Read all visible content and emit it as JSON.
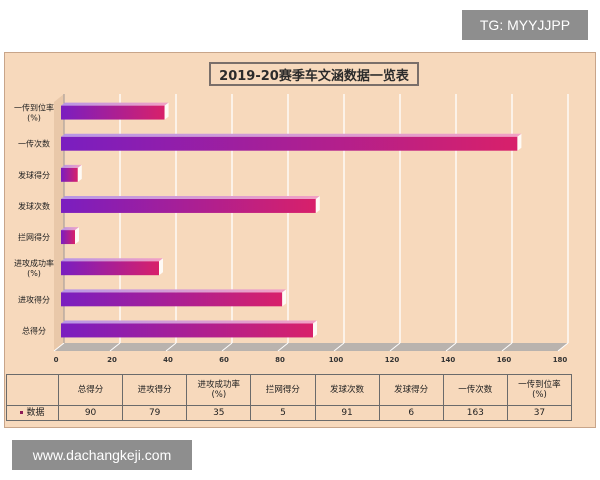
{
  "watermark_top": "TG: MYYJJPP",
  "watermark_bottom": "www.dachangkeji.com",
  "chart_data": {
    "type": "bar",
    "orientation": "horizontal",
    "title": "2019-20赛季车文涵数据一览表",
    "categories": [
      "一传到位率(%)",
      "一传次数",
      "发球得分",
      "发球次数",
      "拦网得分",
      "进攻成功率(%)",
      "进攻得分",
      "总得分"
    ],
    "category_lines": [
      [
        "一传到位率",
        "(%)"
      ],
      [
        "一传次数"
      ],
      [
        "发球得分"
      ],
      [
        "发球次数"
      ],
      [
        "拦网得分"
      ],
      [
        "进攻成功率",
        "(%)"
      ],
      [
        "进攻得分"
      ],
      [
        "总得分"
      ]
    ],
    "series": [
      {
        "name": "数据",
        "values": [
          37,
          163,
          6,
          91,
          5,
          35,
          79,
          90
        ]
      }
    ],
    "xlim": [
      0,
      180
    ],
    "x_ticks": [
      0,
      20,
      40,
      60,
      80,
      100,
      120,
      140,
      160,
      180
    ],
    "grid": true,
    "colors": {
      "bar_start": "#7a1ec0",
      "bar_end": "#d8206a",
      "background": "#f7d9bc",
      "grid": "#ffffff"
    },
    "table": {
      "columns": [
        [
          "总得分"
        ],
        [
          "进攻得分"
        ],
        [
          "进攻成功率",
          "(%)"
        ],
        [
          "拦网得分"
        ],
        [
          "发球次数"
        ],
        [
          "发球得分"
        ],
        [
          "一传次数"
        ],
        [
          "一传到位率",
          "(%)"
        ]
      ],
      "row_label": "数据",
      "values": [
        90,
        79,
        35,
        5,
        91,
        6,
        163,
        37
      ]
    }
  }
}
